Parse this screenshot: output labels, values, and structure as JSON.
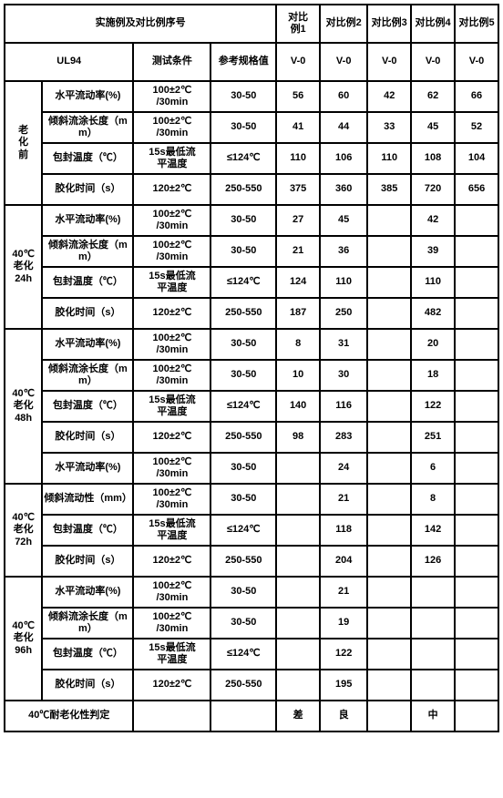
{
  "header": {
    "title": "实施例及对比例序号",
    "ul94": "UL94",
    "test_cond": "测试条件",
    "ref_spec": "参考规格值",
    "cols": [
      "对比例1",
      "对比例2",
      "对比例3",
      "对比例4",
      "对比例5"
    ],
    "v0": "V-0"
  },
  "groups": [
    {
      "label": "老化前",
      "rows": [
        {
          "p": "水平流动率(%)",
          "c": "100±2℃/30min",
          "r": "30-50",
          "v": [
            "56",
            "60",
            "42",
            "62",
            "66"
          ]
        },
        {
          "p": "倾斜流涂长度（mm）",
          "c": "100±2℃/30min",
          "r": "30-50",
          "v": [
            "41",
            "44",
            "33",
            "45",
            "52"
          ]
        },
        {
          "p": "包封温度（℃）",
          "c": "15s最低流平温度",
          "r": "≤124℃",
          "v": [
            "110",
            "106",
            "110",
            "108",
            "104"
          ]
        },
        {
          "p": "胶化时间（s）",
          "c": "120±2℃",
          "r": "250-550",
          "v": [
            "375",
            "360",
            "385",
            "720",
            "656"
          ]
        }
      ]
    },
    {
      "label": "40℃老化24h",
      "rows": [
        {
          "p": "水平流动率(%)",
          "c": "100±2℃/30min",
          "r": "30-50",
          "v": [
            "27",
            "45",
            "",
            "42",
            ""
          ]
        },
        {
          "p": "倾斜流涂长度（mm）",
          "c": "100±2℃/30min",
          "r": "30-50",
          "v": [
            "21",
            "36",
            "",
            "39",
            ""
          ]
        },
        {
          "p": "包封温度（℃）",
          "c": "15s最低流平温度",
          "r": "≤124℃",
          "v": [
            "124",
            "110",
            "",
            "110",
            ""
          ]
        },
        {
          "p": "胶化时间（s）",
          "c": "120±2℃",
          "r": "250-550",
          "v": [
            "187",
            "250",
            "",
            "482",
            ""
          ]
        }
      ]
    },
    {
      "label": "40℃老化48h",
      "rows": [
        {
          "p": "水平流动率(%)",
          "c": "100±2℃/30min",
          "r": "30-50",
          "v": [
            "8",
            "31",
            "",
            "20",
            ""
          ]
        },
        {
          "p": "倾斜流涂长度（mm）",
          "c": "100±2℃/30min",
          "r": "30-50",
          "v": [
            "10",
            "30",
            "",
            "18",
            ""
          ]
        },
        {
          "p": "包封温度（℃）",
          "c": "15s最低流平温度",
          "r": "≤124℃",
          "v": [
            "140",
            "116",
            "",
            "122",
            ""
          ]
        },
        {
          "p": "胶化时间（s）",
          "c": "120±2℃",
          "r": "250-550",
          "v": [
            "98",
            "283",
            "",
            "251",
            ""
          ]
        },
        {
          "p": "水平流动率(%)",
          "c": "100±2℃/30min",
          "r": "30-50",
          "v": [
            "",
            "24",
            "",
            "6",
            ""
          ]
        }
      ]
    },
    {
      "label": "40℃老化72h",
      "rows": [
        {
          "p": "倾斜流动性（mm）",
          "c": "100±2℃/30min",
          "r": "30-50",
          "v": [
            "",
            "21",
            "",
            "8",
            ""
          ]
        },
        {
          "p": "包封温度（℃）",
          "c": "15s最低流平温度",
          "r": "≤124℃",
          "v": [
            "",
            "118",
            "",
            "142",
            ""
          ]
        },
        {
          "p": "胶化时间（s）",
          "c": "120±2℃",
          "r": "250-550",
          "v": [
            "",
            "204",
            "",
            "126",
            ""
          ]
        }
      ]
    },
    {
      "label": "40℃老化96h",
      "rows": [
        {
          "p": "水平流动率(%)",
          "c": "100±2℃/30min",
          "r": "30-50",
          "v": [
            "",
            "21",
            "",
            "",
            ""
          ]
        },
        {
          "p": "倾斜流涂长度（mm）",
          "c": "100±2℃/30min",
          "r": "30-50",
          "v": [
            "",
            "19",
            "",
            "",
            ""
          ]
        },
        {
          "p": "包封温度（℃）",
          "c": "15s最低流平温度",
          "r": "≤124℃",
          "v": [
            "",
            "122",
            "",
            "",
            ""
          ]
        },
        {
          "p": "胶化时间（s）",
          "c": "120±2℃",
          "r": "250-550",
          "v": [
            "",
            "195",
            "",
            "",
            ""
          ]
        }
      ]
    }
  ],
  "footer": {
    "label": "40℃耐老化性判定",
    "v": [
      "差",
      "良",
      "",
      "中",
      ""
    ]
  },
  "style": {
    "border_color": "#000000",
    "bg": "#ffffff",
    "font_size": 11,
    "font_weight": "bold"
  }
}
